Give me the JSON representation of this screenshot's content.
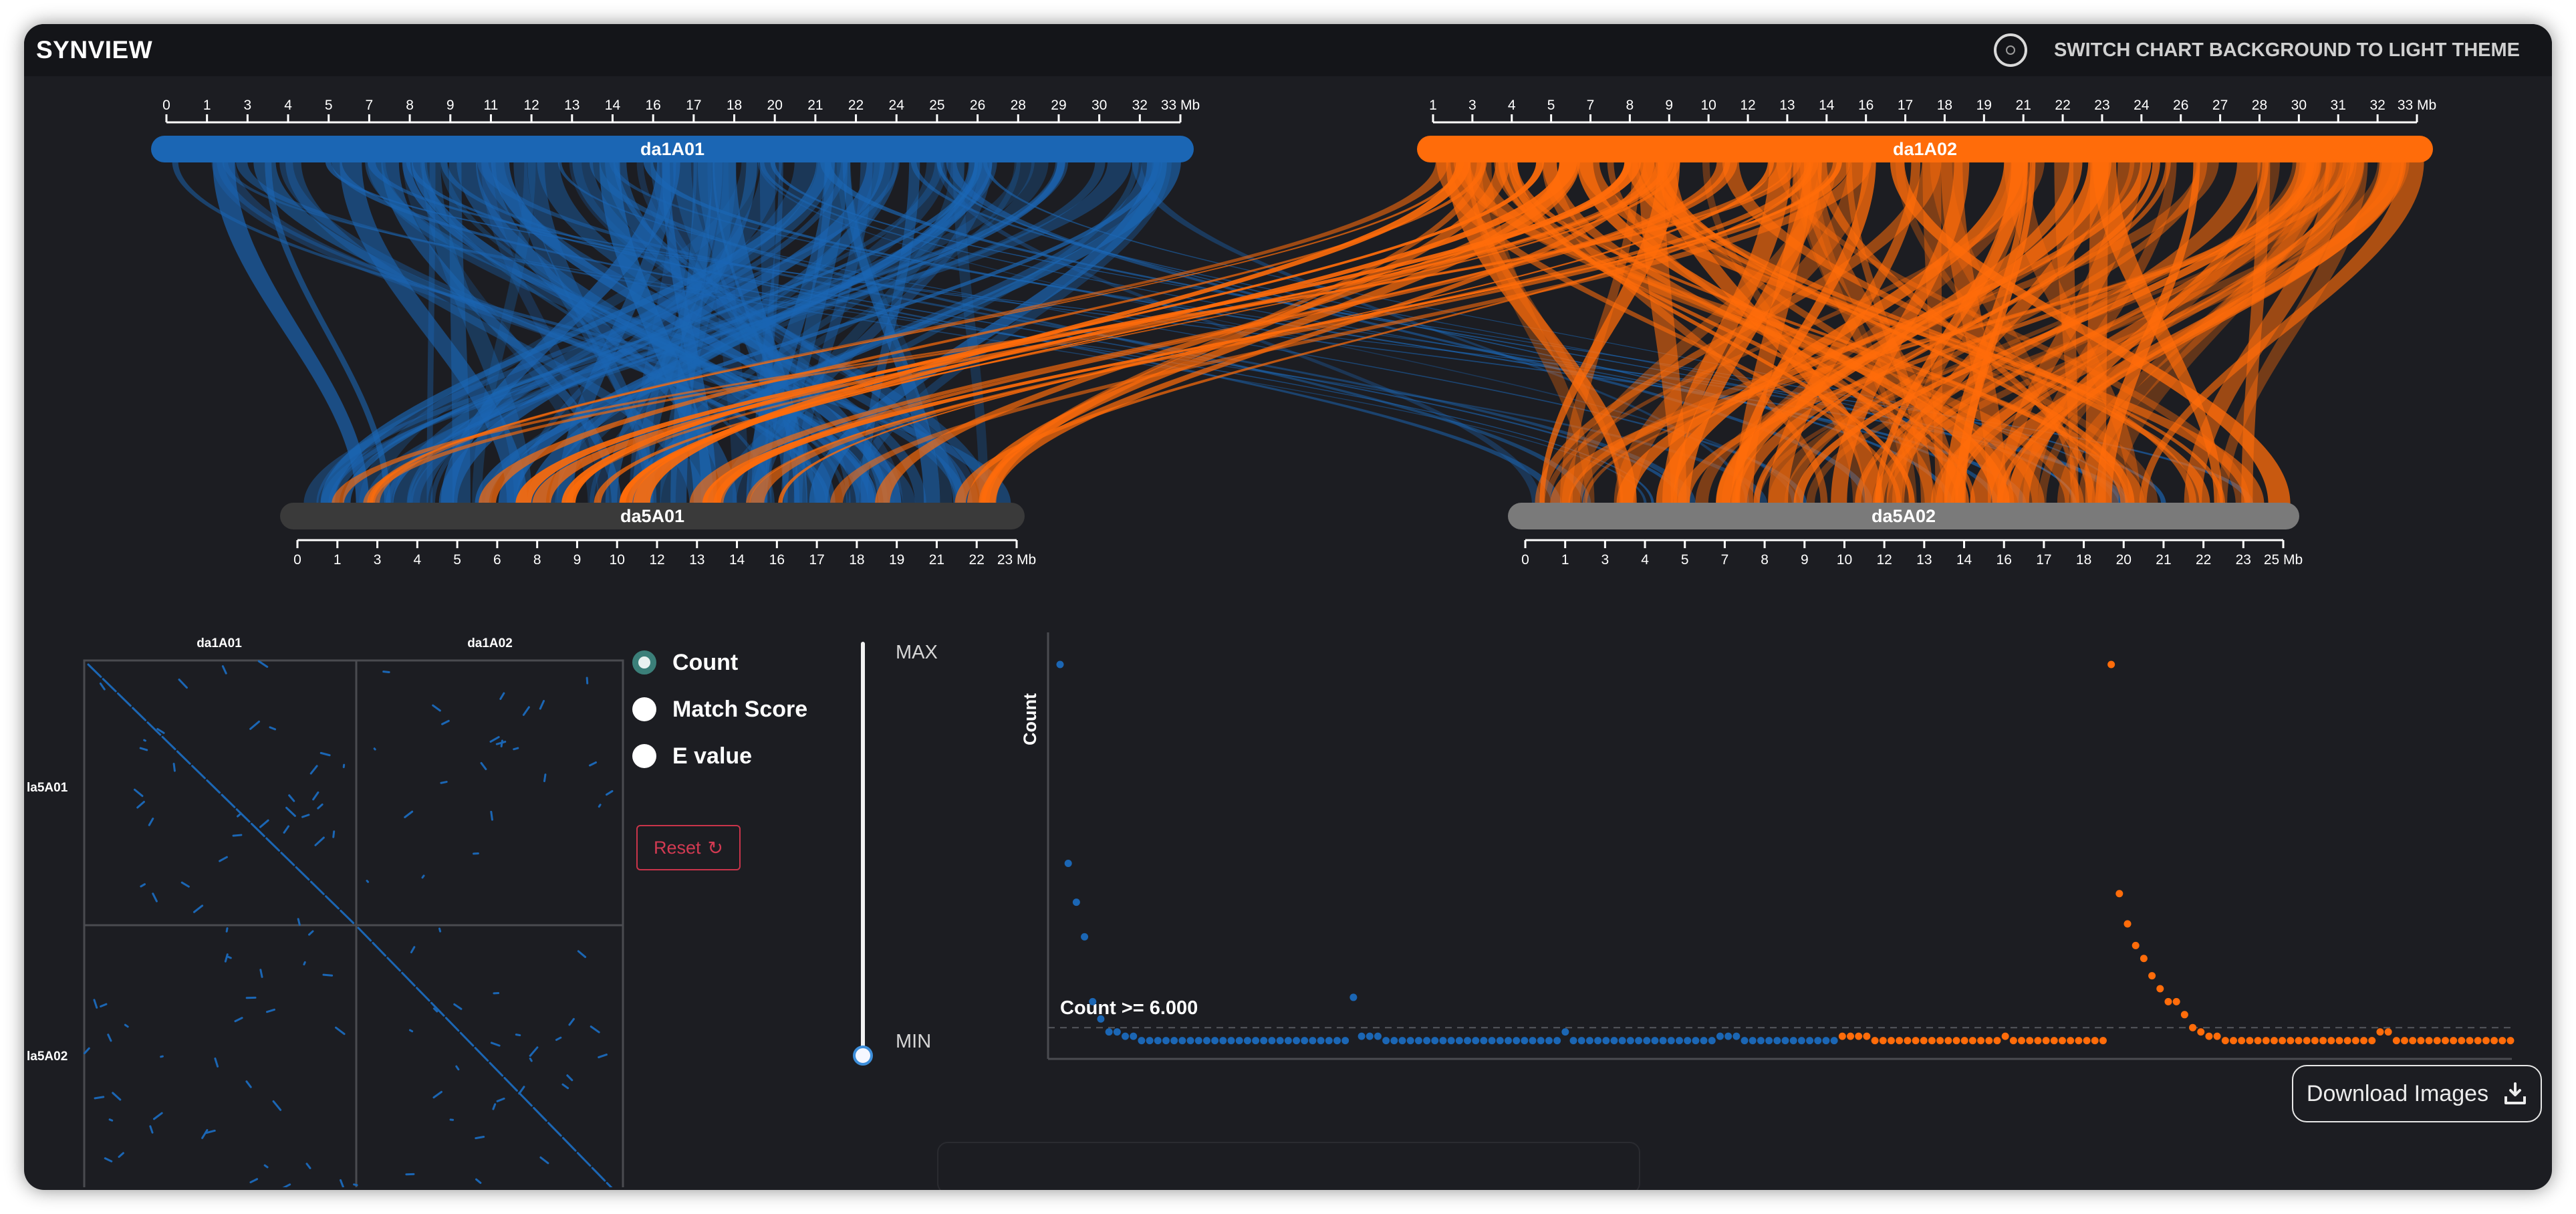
{
  "app": {
    "title": "SYNVIEW"
  },
  "theme_toggle": {
    "label": "SWITCH CHART BACKGROUND TO LIGHT THEME",
    "icon": "toggle-ring-icon"
  },
  "colors": {
    "background": "#1c1d22",
    "topbar": "#141519",
    "series_a": "#1b66b4",
    "series_b": "#ff6c0a",
    "reset": "#c9344a"
  },
  "tracks": {
    "da1A01": {
      "label": "da1A01",
      "ticks": [
        "0",
        "1",
        "3",
        "4",
        "5",
        "7",
        "8",
        "9",
        "11",
        "12",
        "13",
        "14",
        "16",
        "17",
        "18",
        "20",
        "21",
        "22",
        "24",
        "25",
        "26",
        "28",
        "29",
        "30",
        "32",
        "33 Mb"
      ]
    },
    "da1A02": {
      "label": "da1A02",
      "ticks": [
        "1",
        "3",
        "4",
        "5",
        "7",
        "8",
        "9",
        "10",
        "12",
        "13",
        "14",
        "16",
        "17",
        "18",
        "19",
        "21",
        "22",
        "23",
        "24",
        "26",
        "27",
        "28",
        "30",
        "31",
        "32",
        "33 Mb"
      ]
    },
    "da5A01": {
      "label": "da5A01",
      "ticks": [
        "0",
        "1",
        "3",
        "4",
        "5",
        "6",
        "8",
        "9",
        "10",
        "12",
        "13",
        "14",
        "16",
        "17",
        "18",
        "19",
        "21",
        "22",
        "23 Mb"
      ]
    },
    "da5A02": {
      "label": "da5A02",
      "ticks": [
        "0",
        "1",
        "3",
        "4",
        "5",
        "7",
        "8",
        "9",
        "10",
        "12",
        "13",
        "14",
        "16",
        "17",
        "18",
        "20",
        "21",
        "22",
        "23",
        "25 Mb"
      ]
    }
  },
  "dotplot": {
    "col_labels": [
      "da1A01",
      "da1A02"
    ],
    "row_labels": [
      "la5A01",
      "la5A02"
    ]
  },
  "metric": {
    "options": [
      {
        "label": "Count",
        "selected": true
      },
      {
        "label": "Match Score",
        "selected": false
      },
      {
        "label": "E value",
        "selected": false
      }
    ],
    "reset_label": "Reset",
    "reset_icon": "refresh-icon"
  },
  "slider": {
    "max_label": "MAX",
    "min_label": "MIN",
    "value": 0
  },
  "count_chart": {
    "ylabel": "Count",
    "threshold_label": "Count >= 6.000"
  },
  "download": {
    "label": "Download Images",
    "icon": "download-icon"
  },
  "chart_data": {
    "type": "scatter",
    "ylabel": "Count",
    "threshold": 6,
    "series": [
      {
        "name": "da1A01",
        "color": "#1b66b4",
        "y": [
          90,
          44,
          35,
          27,
          12,
          8,
          5,
          5,
          4,
          4,
          3,
          3,
          3,
          3,
          3,
          3,
          3,
          3,
          3,
          3,
          3,
          3,
          3,
          3,
          3,
          3,
          3,
          3,
          3,
          3,
          3,
          3,
          3,
          3,
          3,
          3,
          13,
          4,
          4,
          4,
          3,
          3,
          3,
          3,
          3,
          3,
          3,
          3,
          3,
          3,
          3,
          3,
          3,
          3,
          3,
          3,
          3,
          3,
          3,
          3,
          3,
          3,
          5,
          3,
          3,
          3,
          3,
          3,
          3,
          3,
          3,
          3,
          3,
          3,
          3,
          3,
          3,
          3,
          3,
          3,
          3,
          4,
          4,
          4,
          3,
          3,
          3,
          3,
          3,
          3,
          3,
          3,
          3,
          3,
          3,
          3
        ]
      },
      {
        "name": "da1A02",
        "color": "#ff6c0a",
        "y": [
          4,
          4,
          4,
          4,
          3,
          3,
          3,
          3,
          3,
          3,
          3,
          3,
          3,
          3,
          3,
          3,
          3,
          3,
          3,
          3,
          4,
          3,
          3,
          3,
          3,
          3,
          3,
          3,
          3,
          3,
          3,
          3,
          3,
          90,
          37,
          30,
          25,
          22,
          18,
          15,
          12,
          12,
          9,
          6,
          5,
          4,
          4,
          3,
          3,
          3,
          3,
          3,
          3,
          3,
          3,
          3,
          3,
          3,
          3,
          3,
          3,
          3,
          3,
          3,
          3,
          3,
          5,
          5,
          3,
          3,
          3,
          3,
          3,
          3,
          3,
          3,
          3,
          3,
          3,
          3,
          3,
          3,
          3
        ]
      }
    ]
  }
}
